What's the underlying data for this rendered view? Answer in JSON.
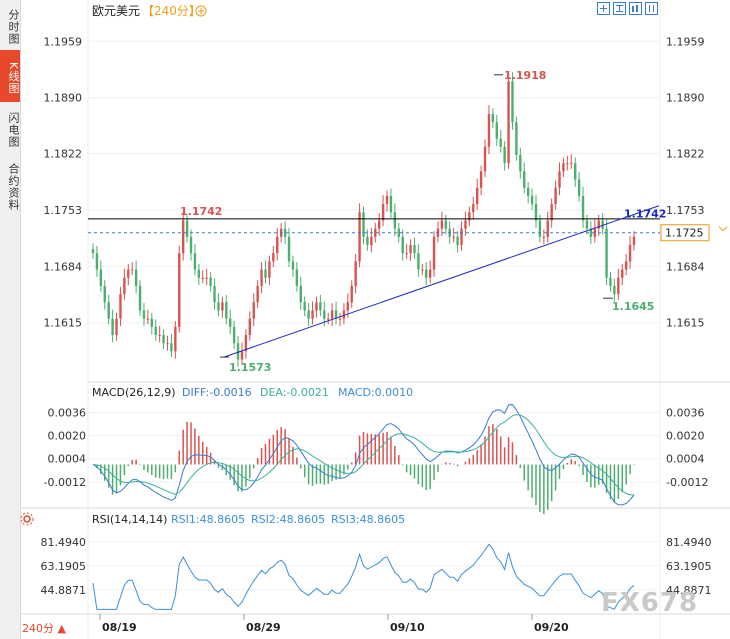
{
  "sidebar": {
    "tabs": [
      {
        "label": "分时图",
        "active": false
      },
      {
        "label": "K线图",
        "active": true
      },
      {
        "label": "闪电图",
        "active": false
      },
      {
        "label": "合约资料",
        "active": false
      }
    ]
  },
  "header": {
    "symbol": "欧元美元",
    "period": "【240分】",
    "period_icon": "plus-circle-icon"
  },
  "toolbar": {
    "icons": [
      "zoom-in-icon",
      "expand-icon",
      "chart-type-icon",
      "scroll-icon"
    ]
  },
  "footer": {
    "period_label": "240分",
    "period_arrow": "▲",
    "watermark": "FX678"
  },
  "colors": {
    "up": "#d9534f",
    "down": "#4caf6e",
    "trendline": "#1a2dbb",
    "level": "#000000",
    "dashed": "#3a7bd5",
    "diff": "#3a7bd5",
    "dea": "#38b09a",
    "rsi": "#3a90d8"
  },
  "chart_data": [
    {
      "type": "candlestick",
      "title": "",
      "y_ticks": [
        "1.1959",
        "1.1890",
        "1.1822",
        "1.1753",
        "1.1684",
        "1.1615"
      ],
      "ylim": [
        1.1545,
        1.1985
      ],
      "x_ticks": [
        "08/19",
        "08/29",
        "09/10",
        "09/20"
      ],
      "annotations": {
        "high_label": "1.1918",
        "high_value": 1.1918,
        "low_label": "1.1573",
        "low_value": 1.1573,
        "recent_low_label": "1.1645",
        "recent_low_value": 1.1645,
        "level_label": "1.1742",
        "level_value": 1.1742,
        "trend_end_label": "1.1742",
        "current_price_label": "1.1725",
        "current_price": 1.1725
      },
      "series": [
        {
          "name": "",
          "close": [
            1.17,
            1.168,
            1.166,
            1.164,
            1.162,
            1.16,
            1.162,
            1.165,
            1.167,
            1.168,
            1.168,
            1.166,
            1.163,
            1.162,
            1.162,
            1.161,
            1.16,
            1.16,
            1.159,
            1.159,
            1.158,
            1.161,
            1.17,
            1.174,
            1.172,
            1.17,
            1.168,
            1.167,
            1.167,
            1.167,
            1.166,
            1.164,
            1.163,
            1.164,
            1.162,
            1.161,
            1.159,
            1.157,
            1.158,
            1.16,
            1.162,
            1.164,
            1.166,
            1.168,
            1.167,
            1.169,
            1.17,
            1.172,
            1.173,
            1.172,
            1.169,
            1.168,
            1.166,
            1.164,
            1.163,
            1.162,
            1.163,
            1.164,
            1.163,
            1.162,
            1.162,
            1.163,
            1.162,
            1.162,
            1.163,
            1.164,
            1.166,
            1.169,
            1.175,
            1.172,
            1.171,
            1.172,
            1.173,
            1.174,
            1.176,
            1.177,
            1.175,
            1.173,
            1.172,
            1.17,
            1.17,
            1.171,
            1.17,
            1.168,
            1.168,
            1.167,
            1.168,
            1.172,
            1.173,
            1.174,
            1.173,
            1.172,
            1.172,
            1.171,
            1.173,
            1.174,
            1.175,
            1.176,
            1.178,
            1.18,
            1.183,
            1.187,
            1.186,
            1.184,
            1.183,
            1.181,
            1.191,
            1.186,
            1.182,
            1.18,
            1.178,
            1.177,
            1.176,
            1.174,
            1.172,
            1.172,
            1.174,
            1.176,
            1.178,
            1.18,
            1.181,
            1.181,
            1.181,
            1.179,
            1.177,
            1.174,
            1.173,
            1.172,
            1.173,
            1.174,
            1.173,
            1.167,
            1.166,
            1.165,
            1.167,
            1.168,
            1.169,
            1.171,
            1.172
          ]
        }
      ]
    },
    {
      "type": "bar",
      "title": "MACD(26,12,9)",
      "legend": [
        {
          "label": "DIFF:-0.0016",
          "color": "#3a7bd5"
        },
        {
          "label": "DEA:-0.0021",
          "color": "#38b09a"
        },
        {
          "label": "MACD:0.0010",
          "color": "#3a90d8"
        }
      ],
      "y_ticks": [
        "0.0036",
        "0.0020",
        "0.0004",
        "-0.0012"
      ],
      "ylim": [
        -0.0028,
        0.0046
      ]
    },
    {
      "type": "line",
      "title": "RSI(14,14,14)",
      "legend": [
        {
          "label": "RSI1:48.8605",
          "color": "#3a90d8"
        },
        {
          "label": "RSI2:48.8605",
          "color": "#3a90d8"
        },
        {
          "label": "RSI3:48.8605",
          "color": "#3a90d8"
        }
      ],
      "y_ticks": [
        "81.4940",
        "63.1905",
        "44.8871"
      ],
      "ylim": [
        28,
        92
      ]
    }
  ]
}
